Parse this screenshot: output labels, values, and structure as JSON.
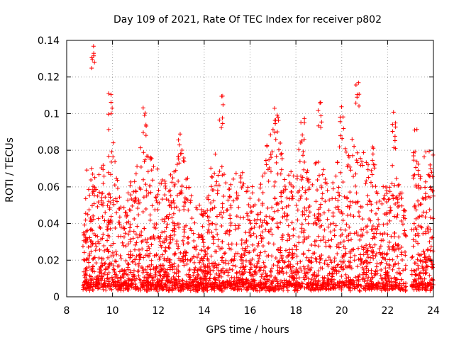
{
  "chart_data": {
    "type": "scatter",
    "title": "Day 109 of 2021, Rate Of TEC Index for receiver p802",
    "xlabel": "GPS time / hours",
    "ylabel": "ROTI / TECUs",
    "xlim": [
      8,
      24
    ],
    "ylim": [
      0,
      0.14
    ],
    "x_ticks": [
      8,
      10,
      12,
      14,
      16,
      18,
      20,
      22,
      24
    ],
    "y_ticks": [
      0,
      0.02,
      0.04,
      0.06,
      0.08,
      0.1,
      0.12,
      0.14
    ],
    "x_tick_labels": [
      "8",
      "10",
      "12",
      "14",
      "16",
      "18",
      "20",
      "22",
      "24"
    ],
    "y_tick_labels": [
      "0",
      "0.02",
      "0.04",
      "0.06",
      "0.08",
      "0.1",
      "0.12",
      "0.14"
    ],
    "grid": true,
    "marker": "+",
    "color": "#ff0000",
    "series": [
      {
        "name": "p802",
        "data_start_hour": 8.7,
        "data_end_hour": 24.0,
        "approx_baseline": 0.005,
        "peaks": [
          {
            "x": 9.15,
            "y": 0.137
          },
          {
            "x": 9.9,
            "y": 0.111
          },
          {
            "x": 11.4,
            "y": 0.106
          },
          {
            "x": 12.95,
            "y": 0.094
          },
          {
            "x": 14.75,
            "y": 0.112
          },
          {
            "x": 17.15,
            "y": 0.11
          },
          {
            "x": 18.3,
            "y": 0.098
          },
          {
            "x": 19.05,
            "y": 0.108
          },
          {
            "x": 20.0,
            "y": 0.106
          },
          {
            "x": 20.7,
            "y": 0.12
          },
          {
            "x": 21.4,
            "y": 0.085
          },
          {
            "x": 22.3,
            "y": 0.102
          },
          {
            "x": 23.2,
            "y": 0.092
          },
          {
            "x": 23.9,
            "y": 0.08
          }
        ],
        "envelope": [
          {
            "x": 8.7,
            "y": 0.048
          },
          {
            "x": 9.0,
            "y": 0.085
          },
          {
            "x": 9.3,
            "y": 0.06
          },
          {
            "x": 9.6,
            "y": 0.075
          },
          {
            "x": 10.0,
            "y": 0.088
          },
          {
            "x": 10.5,
            "y": 0.05
          },
          {
            "x": 11.0,
            "y": 0.075
          },
          {
            "x": 11.4,
            "y": 0.092
          },
          {
            "x": 12.0,
            "y": 0.07
          },
          {
            "x": 12.5,
            "y": 0.065
          },
          {
            "x": 13.0,
            "y": 0.085
          },
          {
            "x": 13.5,
            "y": 0.055
          },
          {
            "x": 14.0,
            "y": 0.05
          },
          {
            "x": 14.6,
            "y": 0.09
          },
          {
            "x": 15.0,
            "y": 0.06
          },
          {
            "x": 15.5,
            "y": 0.078
          },
          {
            "x": 16.0,
            "y": 0.058
          },
          {
            "x": 16.6,
            "y": 0.077
          },
          {
            "x": 17.1,
            "y": 0.1
          },
          {
            "x": 17.6,
            "y": 0.065
          },
          {
            "x": 18.2,
            "y": 0.09
          },
          {
            "x": 18.6,
            "y": 0.07
          },
          {
            "x": 19.0,
            "y": 0.079
          },
          {
            "x": 19.5,
            "y": 0.058
          },
          {
            "x": 20.0,
            "y": 0.09
          },
          {
            "x": 20.5,
            "y": 0.088
          },
          {
            "x": 21.0,
            "y": 0.08
          },
          {
            "x": 21.5,
            "y": 0.06
          },
          {
            "x": 22.0,
            "y": 0.062
          },
          {
            "x": 22.3,
            "y": 0.085
          },
          {
            "x": 22.7,
            "y": 0.05
          },
          {
            "x": 23.0,
            "y": 0.07
          },
          {
            "x": 23.5,
            "y": 0.08
          },
          {
            "x": 24.0,
            "y": 0.078
          }
        ],
        "gap": {
          "start": 22.8,
          "end": 23.05
        }
      }
    ]
  }
}
